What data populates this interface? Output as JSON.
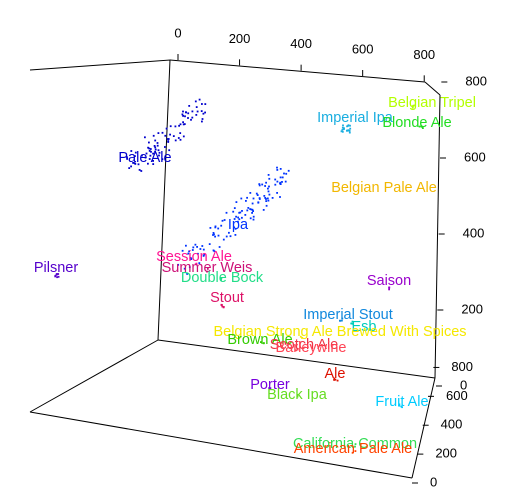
{
  "chart_data": {
    "type": "scatter",
    "projection": "3d-box",
    "title": "",
    "xlabel": "",
    "ylabel": "",
    "zlabel": "",
    "x_ticks": [
      "0",
      "200",
      "400",
      "600",
      "800"
    ],
    "y_ticks": [
      "0",
      "200",
      "400",
      "600",
      "800"
    ],
    "z_ticks": [
      "0",
      "200",
      "400",
      "600",
      "800"
    ],
    "xlim": [
      0,
      900
    ],
    "ylim": [
      0,
      900
    ],
    "zlim": [
      0,
      900
    ],
    "grid": false,
    "legend": "none",
    "clusters": [
      {
        "name": "Pale Ale",
        "color": "#0000CC",
        "x": 105,
        "y": 850,
        "z": 620,
        "spread": 60,
        "count": 90
      },
      {
        "name": "Ipa",
        "color": "#0033FF",
        "x": 300,
        "y": 620,
        "z": 360,
        "spread": 70,
        "count": 120
      },
      {
        "name": "Imperial Ipa",
        "color": "#19AEE0",
        "x": 680,
        "y": 860,
        "z": 850,
        "spread": 15,
        "count": 18
      },
      {
        "name": "Belgian Tripel",
        "color": "#B3FF00",
        "x": 800,
        "y": 880,
        "z": 900,
        "spread": 3,
        "count": 3
      },
      {
        "name": "Blonde Ale",
        "color": "#22DD22",
        "x": 820,
        "y": 870,
        "z": 860,
        "spread": 4,
        "count": 4
      },
      {
        "name": "Belgian Pale Ale",
        "color": "#F2B700",
        "x": 720,
        "y": 620,
        "z": 700,
        "spread": 3,
        "count": 0
      },
      {
        "name": "Pilsner",
        "color": "#5500CC",
        "x": -210,
        "y": 300,
        "z": 650,
        "spread": 6,
        "count": 8
      },
      {
        "name": "Session Ale",
        "color": "#FF1493",
        "x": 140,
        "y": 480,
        "z": 540,
        "spread": 3,
        "count": 2
      },
      {
        "name": "Summer Weis",
        "color": "#CC1177",
        "x": 160,
        "y": 460,
        "z": 500,
        "spread": 3,
        "count": 2
      },
      {
        "name": "Double Bock",
        "color": "#22DD88",
        "x": 180,
        "y": 420,
        "z": 480,
        "spread": 3,
        "count": 2
      },
      {
        "name": "Stout",
        "color": "#DD1166",
        "x": 160,
        "y": 380,
        "z": 400,
        "spread": 5,
        "count": 6
      },
      {
        "name": "Saison",
        "color": "#9900CC",
        "x": 780,
        "y": 450,
        "z": 500,
        "spread": 3,
        "count": 3
      },
      {
        "name": "Imperial Stout",
        "color": "#1188DD",
        "x": 600,
        "y": 380,
        "z": 320,
        "spread": 4,
        "count": 4
      },
      {
        "name": "Esb",
        "color": "#00CCBB",
        "x": 620,
        "y": 360,
        "z": 290,
        "spread": 3,
        "count": 3
      },
      {
        "name": "Belgian Strong Ale Brewed With Spices",
        "color": "#F5E800",
        "x": 480,
        "y": 320,
        "z": 300,
        "spread": 3,
        "count": 2
      },
      {
        "name": "Brown Ale",
        "color": "#33CC00",
        "x": 400,
        "y": 300,
        "z": 260,
        "spread": 3,
        "count": 3
      },
      {
        "name": "Scotch Ale",
        "color": "#EE3344",
        "x": 450,
        "y": 300,
        "z": 250,
        "spread": 3,
        "count": 2
      },
      {
        "name": "Barleywine",
        "color": "#FF4455",
        "x": 470,
        "y": 290,
        "z": 240,
        "spread": 3,
        "count": 2
      },
      {
        "name": "Ale",
        "color": "#DD1100",
        "x": 530,
        "y": 250,
        "z": 180,
        "spread": 4,
        "count": 4
      },
      {
        "name": "Porter",
        "color": "#7700DD",
        "x": 300,
        "y": 220,
        "z": 180,
        "spread": 3,
        "count": 2
      },
      {
        "name": "Black Ipa",
        "color": "#66DD22",
        "x": 320,
        "y": 200,
        "z": 140,
        "spread": 3,
        "count": 2
      },
      {
        "name": "Fruit Ale",
        "color": "#00CCFF",
        "x": 680,
        "y": 250,
        "z": 80,
        "spread": 4,
        "count": 4
      },
      {
        "name": "California Common",
        "color": "#33DD55",
        "x": 490,
        "y": 60,
        "z": 60,
        "spread": 3,
        "count": 2
      },
      {
        "name": "American Pale Ale",
        "color": "#FF4400",
        "x": 510,
        "y": 40,
        "z": 40,
        "spread": 3,
        "count": 2
      }
    ]
  }
}
